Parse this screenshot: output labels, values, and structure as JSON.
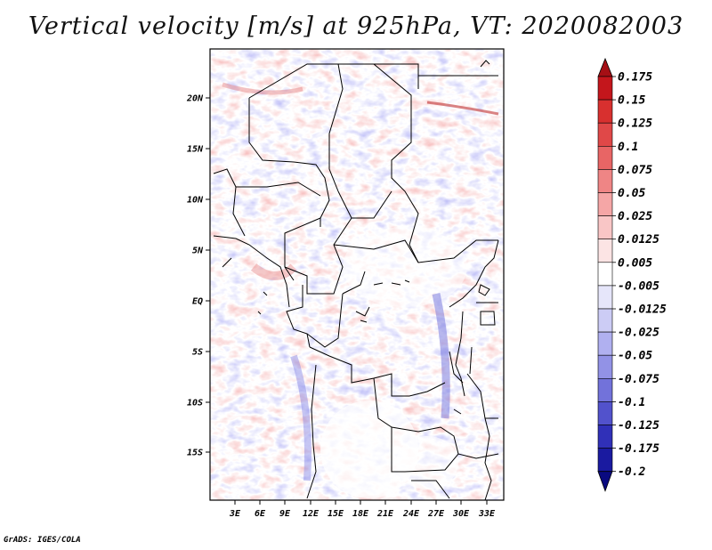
{
  "title": "Vertical velocity [m/s] at 925hPa, VT: 2020082003",
  "credit": "GrADS: IGES/COLA",
  "map": {
    "lat_labels": [
      "20N",
      "15N",
      "10N",
      "5N",
      "EQ",
      "5S",
      "10S",
      "15S"
    ],
    "lon_labels": [
      "3E",
      "6E",
      "9E",
      "12E",
      "15E",
      "18E",
      "21E",
      "24E",
      "27E",
      "30E",
      "33E"
    ]
  },
  "colorbar": {
    "labels": [
      "0.175",
      "0.15",
      "0.125",
      "0.1",
      "0.075",
      "0.05",
      "0.025",
      "0.0125",
      "0.005",
      "-0.005",
      "-0.0125",
      "-0.025",
      "-0.05",
      "-0.075",
      "-0.1",
      "-0.125",
      "-0.175",
      "-0.2"
    ],
    "colors": [
      "#a50f15",
      "#c4161c",
      "#d8302f",
      "#e04848",
      "#e86565",
      "#ef8585",
      "#f5a6a6",
      "#f9c6c6",
      "#fce4e4",
      "#ffffff",
      "#e6e6fa",
      "#ccccf5",
      "#b0b0f0",
      "#9292e6",
      "#7272da",
      "#5252cc",
      "#3030b8",
      "#1a1aa0",
      "#0a0a80"
    ]
  }
}
